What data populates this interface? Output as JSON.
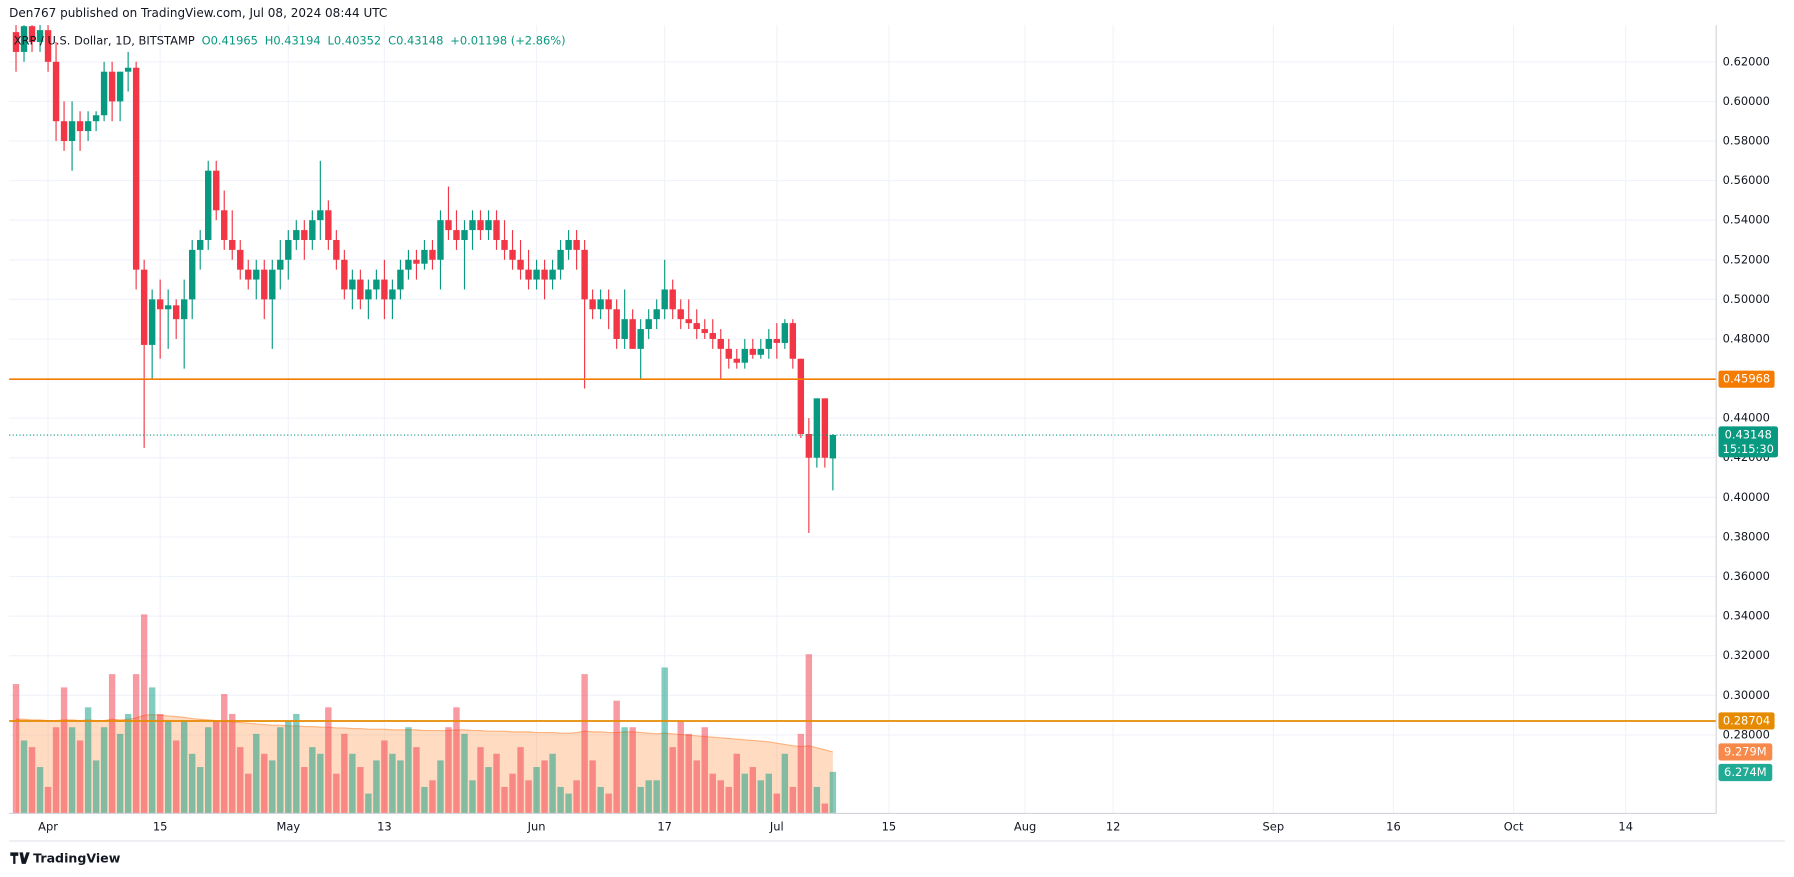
{
  "header": "Den767 published on TradingView.com, Jul 08, 2024 08:44 UTC",
  "footer": "TradingView",
  "chart_data": {
    "type": "candlestick",
    "symbol": "XRP / U.S. Dollar, 1D, BITSTAMP",
    "legend_values": [
      "O0.41965",
      "H0.43194",
      "L0.40352",
      "C0.43148",
      "+0.01198 (+2.86%)"
    ],
    "up_color": "#089981",
    "down_color": "#f23645",
    "ohlc": [
      [
        0.635,
        0.645,
        0.615,
        0.625
      ],
      [
        0.625,
        0.64,
        0.62,
        0.638
      ],
      [
        0.638,
        0.642,
        0.625,
        0.63
      ],
      [
        0.63,
        0.64,
        0.625,
        0.636
      ],
      [
        0.636,
        0.64,
        0.615,
        0.62
      ],
      [
        0.62,
        0.63,
        0.58,
        0.59
      ],
      [
        0.59,
        0.6,
        0.575,
        0.58
      ],
      [
        0.58,
        0.6,
        0.565,
        0.59
      ],
      [
        0.59,
        0.595,
        0.575,
        0.585
      ],
      [
        0.585,
        0.595,
        0.58,
        0.59
      ],
      [
        0.59,
        0.595,
        0.585,
        0.593
      ],
      [
        0.593,
        0.62,
        0.59,
        0.615
      ],
      [
        0.615,
        0.62,
        0.59,
        0.6
      ],
      [
        0.6,
        0.615,
        0.59,
        0.615
      ],
      [
        0.615,
        0.625,
        0.605,
        0.617
      ],
      [
        0.617,
        0.62,
        0.505,
        0.515
      ],
      [
        0.515,
        0.52,
        0.425,
        0.477
      ],
      [
        0.477,
        0.505,
        0.46,
        0.5
      ],
      [
        0.5,
        0.51,
        0.47,
        0.495
      ],
      [
        0.495,
        0.505,
        0.475,
        0.497
      ],
      [
        0.497,
        0.5,
        0.48,
        0.49
      ],
      [
        0.49,
        0.51,
        0.465,
        0.5
      ],
      [
        0.5,
        0.53,
        0.49,
        0.525
      ],
      [
        0.525,
        0.535,
        0.515,
        0.53
      ],
      [
        0.53,
        0.57,
        0.525,
        0.565
      ],
      [
        0.565,
        0.57,
        0.54,
        0.545
      ],
      [
        0.545,
        0.555,
        0.525,
        0.53
      ],
      [
        0.53,
        0.545,
        0.52,
        0.525
      ],
      [
        0.525,
        0.53,
        0.51,
        0.515
      ],
      [
        0.515,
        0.52,
        0.505,
        0.51
      ],
      [
        0.51,
        0.52,
        0.5,
        0.515
      ],
      [
        0.515,
        0.52,
        0.49,
        0.5
      ],
      [
        0.5,
        0.52,
        0.475,
        0.515
      ],
      [
        0.515,
        0.53,
        0.505,
        0.52
      ],
      [
        0.52,
        0.535,
        0.51,
        0.53
      ],
      [
        0.53,
        0.54,
        0.525,
        0.535
      ],
      [
        0.535,
        0.54,
        0.52,
        0.53
      ],
      [
        0.53,
        0.545,
        0.525,
        0.54
      ],
      [
        0.54,
        0.57,
        0.53,
        0.545
      ],
      [
        0.545,
        0.55,
        0.525,
        0.53
      ],
      [
        0.53,
        0.535,
        0.515,
        0.52
      ],
      [
        0.52,
        0.525,
        0.5,
        0.505
      ],
      [
        0.505,
        0.515,
        0.495,
        0.51
      ],
      [
        0.51,
        0.515,
        0.495,
        0.5
      ],
      [
        0.5,
        0.51,
        0.49,
        0.505
      ],
      [
        0.505,
        0.515,
        0.5,
        0.51
      ],
      [
        0.51,
        0.52,
        0.49,
        0.5
      ],
      [
        0.5,
        0.51,
        0.49,
        0.505
      ],
      [
        0.505,
        0.52,
        0.5,
        0.515
      ],
      [
        0.515,
        0.525,
        0.51,
        0.52
      ],
      [
        0.52,
        0.525,
        0.51,
        0.518
      ],
      [
        0.518,
        0.53,
        0.515,
        0.525
      ],
      [
        0.525,
        0.53,
        0.515,
        0.52
      ],
      [
        0.52,
        0.545,
        0.505,
        0.54
      ],
      [
        0.54,
        0.557,
        0.53,
        0.535
      ],
      [
        0.535,
        0.545,
        0.525,
        0.53
      ],
      [
        0.53,
        0.54,
        0.505,
        0.535
      ],
      [
        0.535,
        0.545,
        0.525,
        0.54
      ],
      [
        0.54,
        0.545,
        0.53,
        0.535
      ],
      [
        0.535,
        0.545,
        0.53,
        0.54
      ],
      [
        0.54,
        0.545,
        0.525,
        0.53
      ],
      [
        0.53,
        0.54,
        0.52,
        0.525
      ],
      [
        0.525,
        0.535,
        0.515,
        0.52
      ],
      [
        0.52,
        0.53,
        0.51,
        0.515
      ],
      [
        0.515,
        0.525,
        0.505,
        0.51
      ],
      [
        0.51,
        0.52,
        0.505,
        0.515
      ],
      [
        0.515,
        0.52,
        0.5,
        0.51
      ],
      [
        0.51,
        0.52,
        0.505,
        0.515
      ],
      [
        0.515,
        0.53,
        0.51,
        0.525
      ],
      [
        0.525,
        0.535,
        0.52,
        0.53
      ],
      [
        0.53,
        0.535,
        0.515,
        0.525
      ],
      [
        0.525,
        0.53,
        0.455,
        0.5
      ],
      [
        0.5,
        0.505,
        0.49,
        0.495
      ],
      [
        0.495,
        0.505,
        0.49,
        0.5
      ],
      [
        0.5,
        0.505,
        0.485,
        0.495
      ],
      [
        0.495,
        0.5,
        0.475,
        0.48
      ],
      [
        0.48,
        0.505,
        0.475,
        0.49
      ],
      [
        0.49,
        0.495,
        0.475,
        0.475
      ],
      [
        0.475,
        0.49,
        0.46,
        0.485
      ],
      [
        0.485,
        0.495,
        0.48,
        0.49
      ],
      [
        0.49,
        0.5,
        0.485,
        0.495
      ],
      [
        0.495,
        0.52,
        0.49,
        0.505
      ],
      [
        0.505,
        0.51,
        0.49,
        0.495
      ],
      [
        0.495,
        0.5,
        0.485,
        0.49
      ],
      [
        0.49,
        0.5,
        0.485,
        0.488
      ],
      [
        0.488,
        0.495,
        0.48,
        0.485
      ],
      [
        0.485,
        0.49,
        0.48,
        0.483
      ],
      [
        0.483,
        0.49,
        0.475,
        0.48
      ],
      [
        0.48,
        0.485,
        0.46,
        0.475
      ],
      [
        0.475,
        0.48,
        0.465,
        0.47
      ],
      [
        0.47,
        0.475,
        0.465,
        0.468
      ],
      [
        0.468,
        0.48,
        0.465,
        0.475
      ],
      [
        0.475,
        0.48,
        0.47,
        0.472
      ],
      [
        0.472,
        0.48,
        0.47,
        0.475
      ],
      [
        0.475,
        0.485,
        0.47,
        0.48
      ],
      [
        0.48,
        0.488,
        0.47,
        0.478
      ],
      [
        0.478,
        0.49,
        0.475,
        0.488
      ],
      [
        0.488,
        0.49,
        0.465,
        0.47
      ],
      [
        0.47,
        0.47,
        0.43,
        0.432
      ],
      [
        0.432,
        0.44,
        0.382,
        0.42
      ],
      [
        0.42,
        0.45,
        0.415,
        0.45
      ],
      [
        0.45,
        0.45,
        0.415,
        0.42
      ],
      [
        0.41965,
        0.43194,
        0.40352,
        0.43148
      ]
    ],
    "volume": [
      19.5,
      11,
      10,
      7,
      4,
      13,
      19,
      13,
      11,
      16,
      8,
      13,
      21,
      12,
      15,
      21,
      30,
      19,
      15,
      14,
      11,
      14,
      9,
      7,
      13,
      14,
      18,
      15,
      10,
      6,
      12,
      9,
      8,
      13,
      14,
      15,
      7,
      10,
      9,
      16,
      6,
      12,
      9,
      7,
      3,
      8,
      11,
      9,
      8,
      13,
      10,
      4,
      5,
      8,
      13,
      16,
      12,
      5,
      10,
      7,
      9,
      4,
      6,
      10,
      5,
      7,
      8,
      9,
      4,
      3,
      5,
      21,
      8,
      4,
      3,
      17,
      13,
      13,
      4,
      5,
      5,
      22,
      10,
      14,
      12,
      8,
      13,
      6,
      5,
      4,
      9,
      6,
      7,
      5,
      6,
      3,
      9,
      4,
      12,
      24,
      4,
      1.5,
      6.274
    ],
    "volume_last_label": "6.274M",
    "volume_ma": [
      14.2,
      14.2,
      14.1,
      14.1,
      14.0,
      14.0,
      14.1,
      14.1,
      14.0,
      14.1,
      14.0,
      14.0,
      14.2,
      14.1,
      14.2,
      14.4,
      14.8,
      14.9,
      14.8,
      14.7,
      14.6,
      14.5,
      14.3,
      14.2,
      14.1,
      14.0,
      13.9,
      13.8,
      13.7,
      13.6,
      13.5,
      13.4,
      13.3,
      13.3,
      13.2,
      13.2,
      13.1,
      13.1,
      13.0,
      13.0,
      12.9,
      12.9,
      12.8,
      12.8,
      12.7,
      12.7,
      12.7,
      12.6,
      12.6,
      12.6,
      12.6,
      12.5,
      12.5,
      12.5,
      12.5,
      12.6,
      12.6,
      12.5,
      12.5,
      12.4,
      12.4,
      12.4,
      12.3,
      12.3,
      12.3,
      12.2,
      12.2,
      12.2,
      12.1,
      12.1,
      12.2,
      12.4,
      12.3,
      12.3,
      12.2,
      12.2,
      12.3,
      12.3,
      12.2,
      12.1,
      12.0,
      12.1,
      12.0,
      11.9,
      11.8,
      11.7,
      11.6,
      11.5,
      11.4,
      11.3,
      11.2,
      11.1,
      11.0,
      10.9,
      10.8,
      10.6,
      10.4,
      10.2,
      10.1,
      10.2,
      9.9,
      9.6,
      9.279
    ],
    "volume_ma_last_label": "9.279M",
    "ylim": [
      0.2403,
      0.6385
    ],
    "yticks": [
      {
        "value": 0.28,
        "label": "0.28000"
      },
      {
        "value": 0.3,
        "label": "0.30000"
      },
      {
        "value": 0.32,
        "label": "0.32000"
      },
      {
        "value": 0.34,
        "label": "0.34000"
      },
      {
        "value": 0.36,
        "label": "0.36000"
      },
      {
        "value": 0.38,
        "label": "0.38000"
      },
      {
        "value": 0.4,
        "label": "0.40000"
      },
      {
        "value": 0.42,
        "label": "0.42000"
      },
      {
        "value": 0.44,
        "label": "0.44000"
      },
      {
        "value": 0.48,
        "label": "0.48000"
      },
      {
        "value": 0.5,
        "label": "0.50000"
      },
      {
        "value": 0.52,
        "label": "0.52000"
      },
      {
        "value": 0.54,
        "label": "0.54000"
      },
      {
        "value": 0.56,
        "label": "0.56000"
      },
      {
        "value": 0.58,
        "label": "0.58000"
      },
      {
        "value": 0.6,
        "label": "0.60000"
      },
      {
        "value": 0.62,
        "label": "0.62000"
      }
    ],
    "xlim": [
      -0.857,
      212.3
    ],
    "xticks": [
      {
        "value": 4,
        "label": "Apr"
      },
      {
        "value": 18,
        "label": "15"
      },
      {
        "value": 34,
        "label": "May"
      },
      {
        "value": 46,
        "label": "13"
      },
      {
        "value": 65,
        "label": "Jun"
      },
      {
        "value": 81,
        "label": "17"
      },
      {
        "value": 95,
        "label": "Jul"
      },
      {
        "value": 109,
        "label": "15"
      },
      {
        "value": 126,
        "label": "Aug"
      },
      {
        "value": 137,
        "label": "12"
      },
      {
        "value": 157,
        "label": "Sep"
      },
      {
        "value": 172,
        "label": "16"
      },
      {
        "value": 187,
        "label": "Oct"
      },
      {
        "value": 201,
        "label": "14"
      }
    ],
    "grid": true,
    "levels": [
      {
        "value": 0.45968,
        "label": "0.45968",
        "color": "#f57c00"
      },
      {
        "value": 0.28704,
        "label": "0.28704",
        "color": "#e68a00"
      }
    ],
    "last_price": {
      "value": 0.43148,
      "label": "0.43148"
    },
    "countdown": "15:15:30"
  }
}
